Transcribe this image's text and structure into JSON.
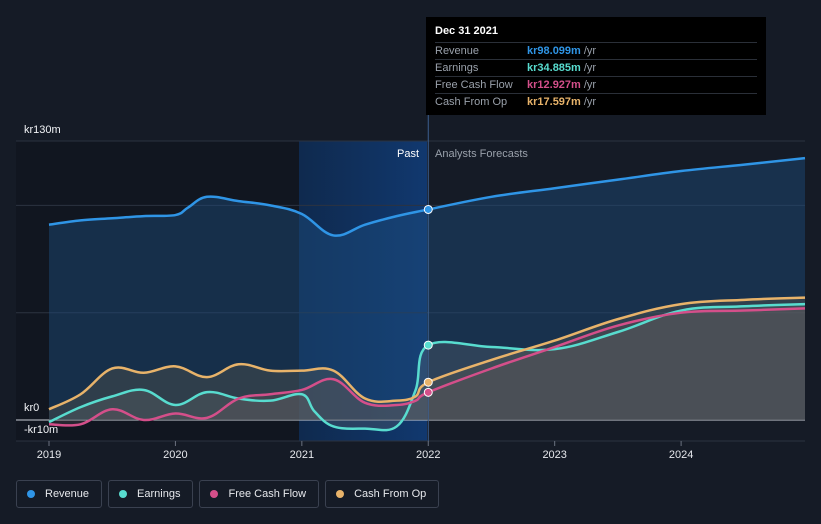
{
  "chart_data": {
    "type": "line",
    "xlim": [
      2019.0,
      2024.98
    ],
    "ylim": [
      -10,
      130
    ],
    "y_labels": {
      "top": "kr130m",
      "zero": "kr0",
      "bottom": "-kr10m"
    },
    "x_ticks": [
      {
        "value": 2019,
        "label": "2019"
      },
      {
        "value": 2020,
        "label": "2020"
      },
      {
        "value": 2021,
        "label": "2021"
      },
      {
        "value": 2022,
        "label": "2022"
      },
      {
        "value": 2023,
        "label": "2023"
      },
      {
        "value": 2024,
        "label": "2024"
      }
    ],
    "divider_x": 2022.0,
    "past_label": "Past",
    "forecast_label": "Analysts Forecasts",
    "grid": true,
    "legend_position": "bottom",
    "series": [
      {
        "name": "Revenue",
        "color": "#2f95e6",
        "x": [
          2019.0,
          2019.25,
          2019.5,
          2019.75,
          2020.0,
          2020.1,
          2020.25,
          2020.5,
          2020.75,
          2021.0,
          2021.25,
          2021.5,
          2021.75,
          2022.0,
          2022.5,
          2023.0,
          2023.5,
          2024.0,
          2024.5,
          2024.98
        ],
        "y": [
          91,
          93,
          94,
          95,
          95.5,
          99,
          104,
          102,
          100,
          96,
          86,
          91,
          95,
          98.1,
          104,
          108,
          112,
          116,
          119,
          122
        ]
      },
      {
        "name": "Earnings",
        "color": "#58dccf",
        "x": [
          2019.0,
          2019.25,
          2019.5,
          2019.75,
          2020.0,
          2020.25,
          2020.5,
          2020.75,
          2021.0,
          2021.1,
          2021.25,
          2021.5,
          2021.75,
          2021.9,
          2022.0,
          2022.5,
          2023.0,
          2023.5,
          2024.0,
          2024.5,
          2024.98
        ],
        "y": [
          -1,
          6,
          11,
          14,
          7,
          13,
          10,
          9,
          12,
          4,
          -3,
          -4,
          -3,
          14,
          34.9,
          34,
          33,
          41,
          51,
          53,
          54
        ]
      },
      {
        "name": "Free Cash Flow",
        "color": "#d44f8a",
        "x": [
          2019.0,
          2019.25,
          2019.5,
          2019.75,
          2020.0,
          2020.25,
          2020.5,
          2020.75,
          2021.0,
          2021.25,
          2021.5,
          2021.75,
          2021.9,
          2022.0,
          2022.5,
          2023.0,
          2023.5,
          2024.0,
          2024.5,
          2024.98
        ],
        "y": [
          -2,
          -2,
          5,
          0,
          3,
          1,
          10,
          12,
          14,
          19,
          8,
          7,
          9,
          12.9,
          24,
          34,
          44,
          50,
          51,
          52
        ]
      },
      {
        "name": "Cash From Op",
        "color": "#e8b36a",
        "x": [
          2019.0,
          2019.25,
          2019.5,
          2019.75,
          2020.0,
          2020.25,
          2020.5,
          2020.75,
          2021.0,
          2021.25,
          2021.5,
          2021.75,
          2021.9,
          2022.0,
          2022.5,
          2023.0,
          2023.5,
          2024.0,
          2024.5,
          2024.98
        ],
        "y": [
          5,
          12,
          24,
          22,
          25,
          20,
          26,
          23,
          23,
          23,
          10,
          9,
          11,
          17.6,
          28,
          37,
          47,
          54,
          56,
          57
        ]
      }
    ]
  },
  "tooltip": {
    "date": "Dec 31 2021",
    "rows": [
      {
        "name": "Revenue",
        "value": "kr98.099m",
        "unit": "/yr",
        "color": "#2f95e6"
      },
      {
        "name": "Earnings",
        "value": "kr34.885m",
        "unit": "/yr",
        "color": "#58dccf"
      },
      {
        "name": "Free Cash Flow",
        "value": "kr12.927m",
        "unit": "/yr",
        "color": "#d44f8a"
      },
      {
        "name": "Cash From Op",
        "value": "kr17.597m",
        "unit": "/yr",
        "color": "#e8b36a"
      }
    ]
  },
  "legend": [
    {
      "label": "Revenue",
      "color": "#2f95e6"
    },
    {
      "label": "Earnings",
      "color": "#58dccf"
    },
    {
      "label": "Free Cash Flow",
      "color": "#d44f8a"
    },
    {
      "label": "Cash From Op",
      "color": "#e8b36a"
    }
  ]
}
